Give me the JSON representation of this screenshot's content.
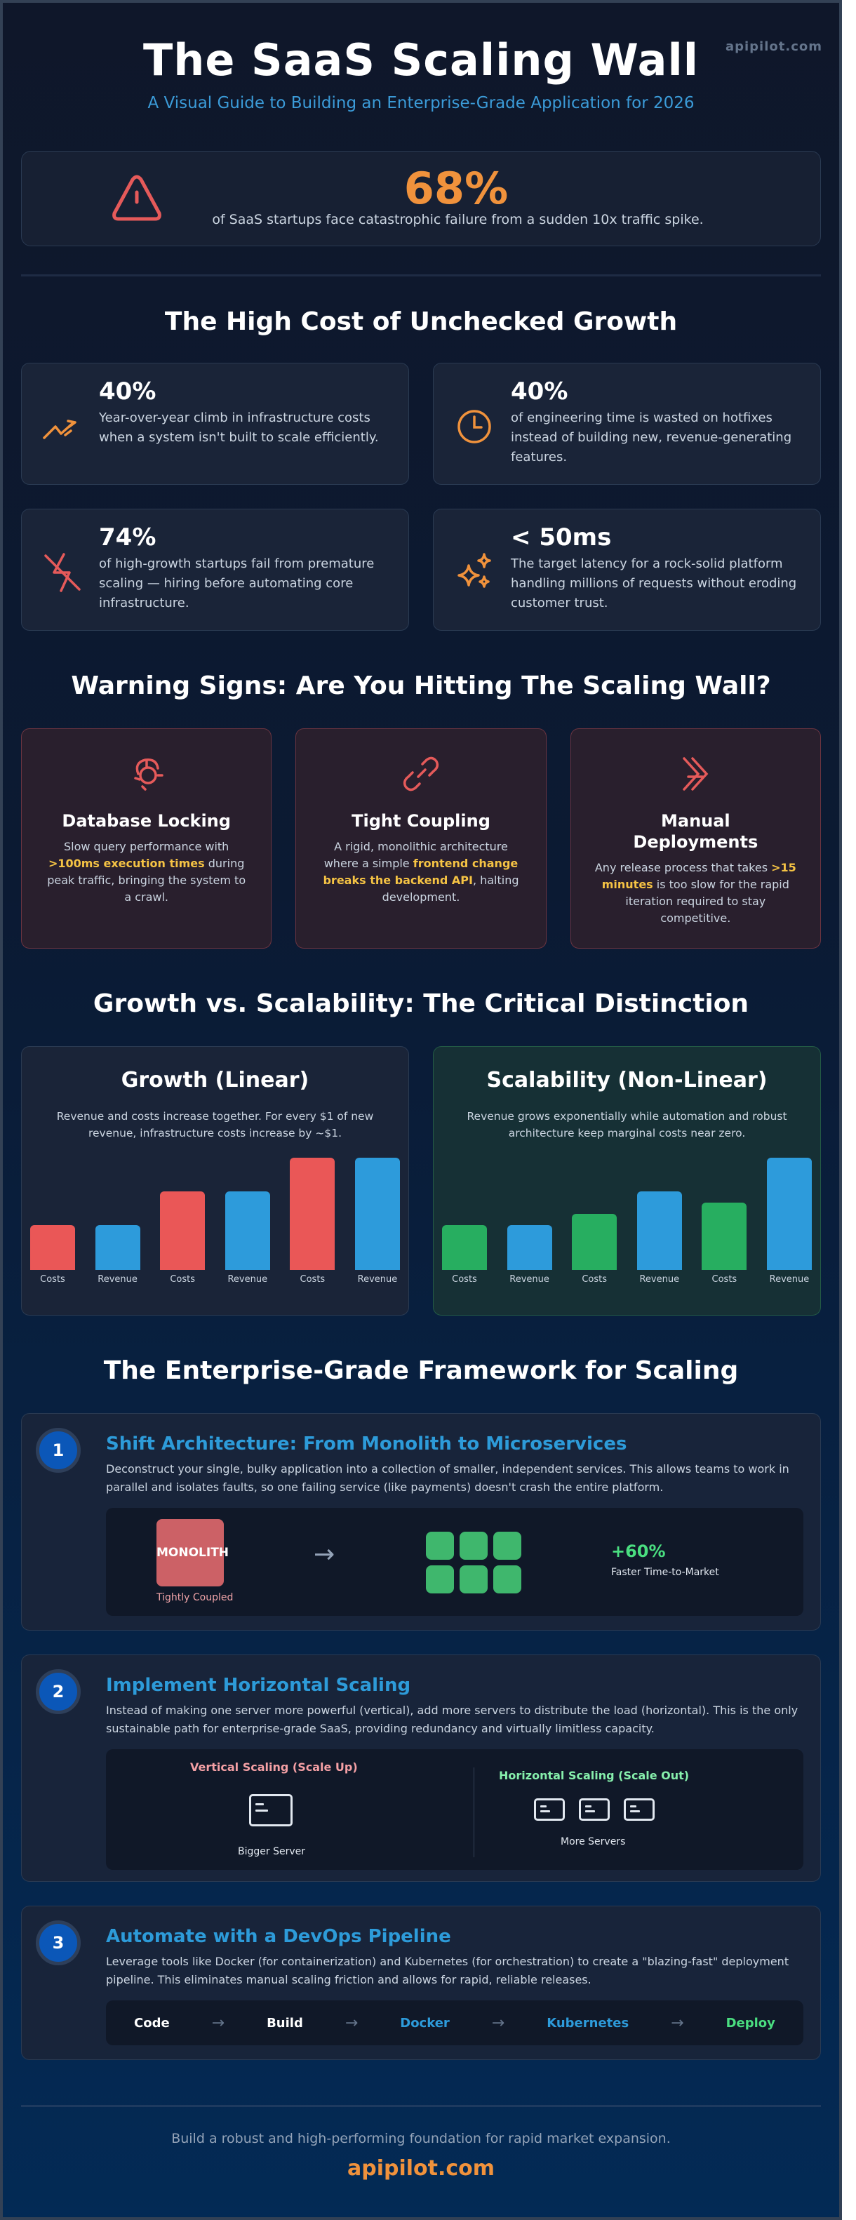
{
  "header": {
    "title": "The SaaS Scaling Wall",
    "subtitle": "A Visual Guide to Building an Enterprise-Grade Application for 2026",
    "brand": "apipilot.com"
  },
  "hero": {
    "icon": "warning-triangle-icon",
    "value": "68%",
    "description": "of SaaS startups face catastrophic failure from a sudden 10x traffic spike.",
    "value_color": "#f0923c"
  },
  "cost_section": {
    "title": "The High Cost of Unchecked Growth",
    "stats": [
      {
        "icon": "trending-up-icon",
        "value": "40%",
        "text": "Year-over-year climb in infrastructure costs when a system isn't built to scale efficiently."
      },
      {
        "icon": "clock-icon",
        "value": "40%",
        "text": "of engineering time is wasted on hotfixes instead of building new, revenue-generating features."
      },
      {
        "icon": "zap-off-icon",
        "value": "74%",
        "text": "of high-growth startups fail from premature scaling — hiring before automating core infrastructure."
      },
      {
        "icon": "sparkles-icon",
        "value": "< 50ms",
        "text": "The target latency for a rock-solid platform handling millions of requests without eroding customer trust."
      }
    ]
  },
  "warning_section": {
    "title": "Warning Signs: Are You Hitting The Scaling Wall?",
    "cards": [
      {
        "icon": "database-lock-icon",
        "title": "Database Locking",
        "pre": "Slow query performance with ",
        "highlight": ">100ms execution times",
        "post": " during peak traffic, bringing the system to a crawl."
      },
      {
        "icon": "link-icon",
        "title": "Tight Coupling",
        "pre": "A rigid, monolithic architecture where a simple ",
        "highlight": "frontend change breaks the backend API",
        "post": ", halting development."
      },
      {
        "icon": "fast-forward-off-icon",
        "title": "Manual Deployments",
        "pre": "Any release process that takes ",
        "highlight": ">15 minutes",
        "post": " is too slow for the rapid iteration required to stay competitive."
      }
    ]
  },
  "compare_section": {
    "title": "Growth vs. Scalability: The Critical Distinction",
    "growth": {
      "title": "Growth (Linear)",
      "text": "Revenue and costs increase together. For every $1 of new revenue, infrastructure costs increase by ~$1."
    },
    "scalability": {
      "title": "Scalability (Non-Linear)",
      "text": "Revenue grows exponentially while automation and robust architecture keep marginal costs near zero."
    }
  },
  "chart_data": [
    {
      "type": "bar",
      "title": "Growth (Linear)",
      "categories": [
        "Costs",
        "Revenue",
        "Costs",
        "Revenue",
        "Costs",
        "Revenue"
      ],
      "values": [
        40,
        40,
        70,
        70,
        100,
        100
      ],
      "colors": [
        "#ea5757",
        "#2d9bdb",
        "#ea5757",
        "#2d9bdb",
        "#ea5757",
        "#2d9bdb"
      ],
      "xlabel": "",
      "ylabel": "",
      "ylim": [
        0,
        100
      ],
      "grid": false
    },
    {
      "type": "bar",
      "title": "Scalability (Non-Linear)",
      "categories": [
        "Costs",
        "Revenue",
        "Costs",
        "Revenue",
        "Costs",
        "Revenue"
      ],
      "values": [
        40,
        40,
        50,
        70,
        60,
        100
      ],
      "colors": [
        "#27ae60",
        "#2d9bdb",
        "#27ae60",
        "#2d9bdb",
        "#27ae60",
        "#2d9bdb"
      ],
      "xlabel": "",
      "ylabel": "",
      "ylim": [
        0,
        100
      ],
      "grid": false
    }
  ],
  "framework_section": {
    "title": "The Enterprise-Grade Framework for Scaling",
    "steps": [
      {
        "number": "1",
        "title": "Shift Architecture: From Monolith to Microservices",
        "text": "Deconstruct your single, bulky application into a collection of smaller, independent services. This allows teams to work in parallel and isolates faults, so one failing service (like payments) doesn't crash the entire platform.",
        "monolith_label": "MONOLITH",
        "monolith_caption": "Tightly Coupled",
        "arrow": "→",
        "gain_value": "+60%",
        "gain_label": "Faster Time-to-Market"
      },
      {
        "number": "2",
        "title": "Implement Horizontal Scaling",
        "text": "Instead of making one server more powerful (vertical), add more servers to distribute the load (horizontal). This is the only sustainable path for enterprise-grade SaaS, providing redundancy and virtually limitless capacity.",
        "vertical_title": "Vertical Scaling (Scale Up)",
        "vertical_caption": "Bigger Server",
        "horizontal_title": "Horizontal Scaling (Scale Out)",
        "horizontal_caption": "More Servers"
      },
      {
        "number": "3",
        "title": "Automate with a DevOps Pipeline",
        "text": "Leverage tools like Docker (for containerization) and Kubernetes (for orchestration) to create a \"blazing-fast\" deployment pipeline. This eliminates manual scaling friction and allows for rapid, reliable releases.",
        "pipeline": [
          {
            "label": "Code",
            "color": "#ffffff"
          },
          {
            "label": "Build",
            "color": "#ffffff"
          },
          {
            "label": "Docker",
            "color": "#2d9bdb"
          },
          {
            "label": "Kubernetes",
            "color": "#2d9bdb"
          },
          {
            "label": "Deploy",
            "color": "#4ade80"
          }
        ],
        "arrow": "→"
      }
    ]
  },
  "footer": {
    "tagline": "Build a robust and high-performing foundation for rapid market expansion.",
    "brand": "apipilot.com"
  }
}
